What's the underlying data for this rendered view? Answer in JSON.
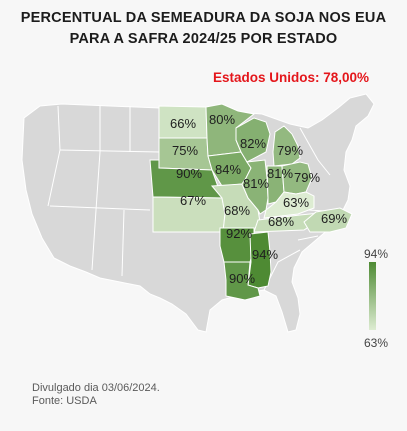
{
  "title": {
    "line1": "PERCENTUAL DA SEMEADURA DA SOJA NOS EUA",
    "line2": "PARA A SAFRA 2024/25 POR ESTADO"
  },
  "total": "Estados Unidos: 78,00%",
  "states": [
    {
      "id": "north-dakota",
      "label": "66%",
      "value": 66
    },
    {
      "id": "minnesota",
      "label": "80%",
      "value": 80
    },
    {
      "id": "south-dakota",
      "label": "75%",
      "value": 75
    },
    {
      "id": "wisconsin",
      "label": "82%",
      "value": 82
    },
    {
      "id": "michigan",
      "label": "79%",
      "value": 79
    },
    {
      "id": "nebraska",
      "label": "90%",
      "value": 90
    },
    {
      "id": "iowa",
      "label": "84%",
      "value": 84
    },
    {
      "id": "illinois",
      "label": "81%",
      "value": 81
    },
    {
      "id": "indiana",
      "label": "81%",
      "value": 81
    },
    {
      "id": "ohio",
      "label": "79%",
      "value": 79
    },
    {
      "id": "kansas",
      "label": "67%",
      "value": 67
    },
    {
      "id": "missouri",
      "label": "68%",
      "value": 68
    },
    {
      "id": "kentucky",
      "label": "63%",
      "value": 63
    },
    {
      "id": "tennessee",
      "label": "68%",
      "value": 68
    },
    {
      "id": "north-carolina",
      "label": "69%",
      "value": 69
    },
    {
      "id": "arkansas",
      "label": "92%",
      "value": 92
    },
    {
      "id": "mississippi",
      "label": "94%",
      "value": 94
    },
    {
      "id": "louisiana",
      "label": "90%",
      "value": 90
    }
  ],
  "legend": {
    "max_label": "94%",
    "min_label": "63%",
    "max": 94,
    "min": 63,
    "color_max": "#4e8a33",
    "color_min": "#ddecd2"
  },
  "colors": {
    "base_land": "#d8d8d8",
    "border": "#ffffff",
    "title": "#1c1c1c",
    "total": "#e4161b"
  },
  "footer": {
    "line1": "Divulgado dia 03/06/2024.",
    "line2": "Fonte: USDA"
  }
}
